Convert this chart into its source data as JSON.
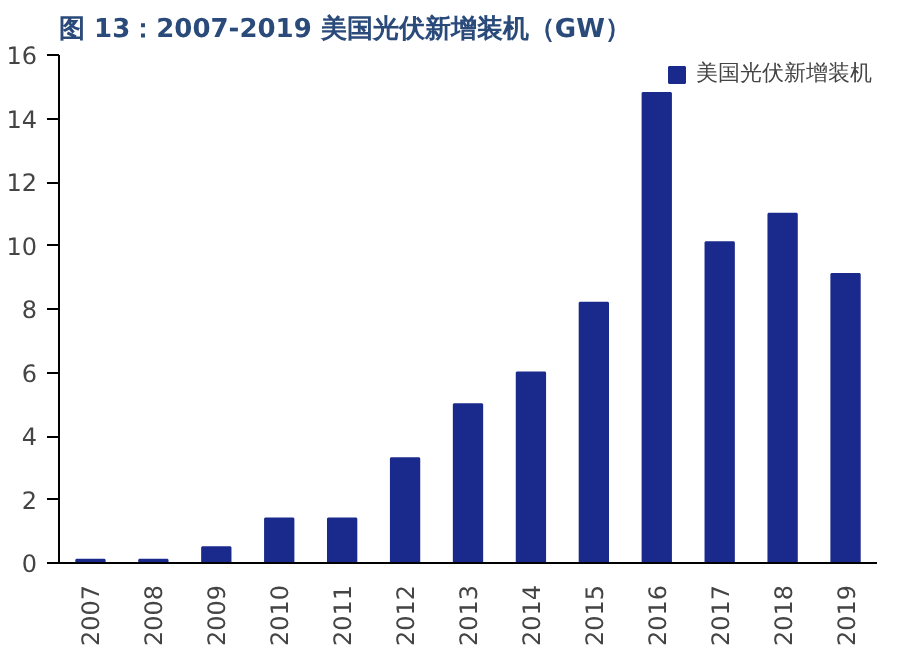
{
  "chart_data": {
    "type": "bar",
    "title": "图 13：2007-2019 美国光伏新增装机（GW）",
    "categories": [
      "2007",
      "2008",
      "2009",
      "2010",
      "2011",
      "2012",
      "2013",
      "2014",
      "2015",
      "2016",
      "2017",
      "2018",
      "2019"
    ],
    "series": [
      {
        "name": "美国光伏新增装机",
        "color": "#1a2a8c",
        "values": [
          0.1,
          0.1,
          0.5,
          1.4,
          1.4,
          3.3,
          5.0,
          6.0,
          8.2,
          14.8,
          10.1,
          11.0,
          9.1
        ]
      }
    ],
    "ylim": [
      0,
      16
    ],
    "yticks": [
      0,
      2,
      4,
      6,
      8,
      10,
      12,
      14,
      16
    ],
    "grid": false,
    "legend": "top right"
  }
}
